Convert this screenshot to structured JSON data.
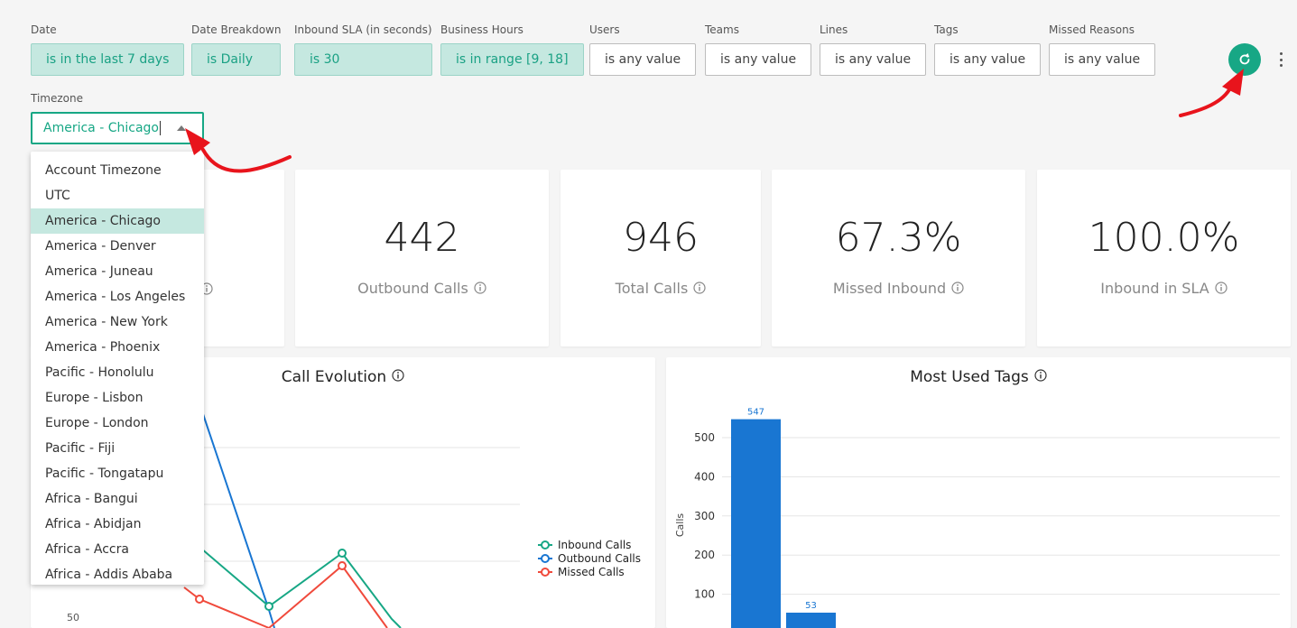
{
  "filters": [
    {
      "label": "Date",
      "value": "is in the last 7 days",
      "active": true
    },
    {
      "label": "Date Breakdown",
      "value": "is Daily",
      "active": true
    },
    {
      "label": "Inbound SLA (in seconds)",
      "value": "is 30",
      "active": true
    },
    {
      "label": "Business Hours",
      "value": "is in range [9, 18]",
      "active": true
    },
    {
      "label": "Users",
      "value": "is any value",
      "active": false
    },
    {
      "label": "Teams",
      "value": "is any value",
      "active": false
    },
    {
      "label": "Lines",
      "value": "is any value",
      "active": false
    },
    {
      "label": "Tags",
      "value": "is any value",
      "active": false
    },
    {
      "label": "Missed Reasons",
      "value": "is any value",
      "active": false
    }
  ],
  "timezone": {
    "label": "Timezone",
    "value": "America - Chicago",
    "options": [
      "Account Timezone",
      "UTC",
      "America - Chicago",
      "America - Denver",
      "America - Juneau",
      "America - Los Angeles",
      "America - New York",
      "America - Phoenix",
      "Pacific - Honolulu",
      "Europe - Lisbon",
      "Europe - London",
      "Pacific - Fiji",
      "Pacific - Tongatapu",
      "Africa - Bangui",
      "Africa - Abidjan",
      "Africa - Accra",
      "Africa - Addis Ababa"
    ],
    "selected_index": 2
  },
  "metrics": [
    {
      "value": "442",
      "label": "Outbound Calls"
    },
    {
      "value": "946",
      "label": "Total Calls"
    },
    {
      "value": "67.3%",
      "label": "Missed Inbound"
    },
    {
      "value": "100.0%",
      "label": "Inbound in SLA"
    }
  ],
  "icons": {
    "refresh": "refresh-icon",
    "more": "more-vertical-icon",
    "info": "info-icon"
  },
  "colors": {
    "accent": "#17a785",
    "inbound": "#17a785",
    "outbound": "#1976d2",
    "missed": "#f04a3c",
    "bar": "#1976d2"
  },
  "chart_data": [
    {
      "type": "line",
      "title": "Call Evolution",
      "y_tick_partial": "50",
      "series": [
        {
          "name": "Inbound Calls"
        },
        {
          "name": "Outbound Calls"
        },
        {
          "name": "Missed Calls"
        }
      ]
    },
    {
      "type": "bar",
      "title": "Most Used Tags",
      "ylabel": "Calls",
      "yticks": [
        100,
        200,
        300,
        400,
        500
      ],
      "ylim": [
        0,
        600
      ],
      "values": [
        547,
        53
      ]
    }
  ]
}
